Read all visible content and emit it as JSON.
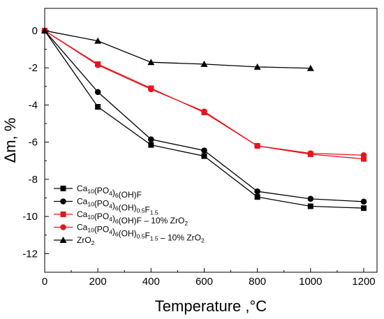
{
  "chart_data": {
    "type": "line",
    "xlabel": "Temperature ,°C",
    "ylabel": "Δm, %",
    "xlim": [
      0,
      1250
    ],
    "ylim": [
      -13,
      1.2
    ],
    "xticks": [
      0,
      200,
      400,
      600,
      800,
      1000,
      1200
    ],
    "yticks": [
      0,
      -2,
      -4,
      -6,
      -8,
      -10,
      -12
    ],
    "legend_position": "bottom-left",
    "grid": false,
    "series": [
      {
        "name": "Ca10(PO4)6(OH)F",
        "legend_label": {
          "base": "Ca",
          "parts": [
            [
              "sub",
              "10"
            ],
            [
              "",
              "(PO"
            ],
            [
              "sub",
              "4"
            ],
            [
              "",
              ")"
            ],
            [
              "sub",
              "6"
            ],
            [
              "",
              "(OH)F"
            ]
          ]
        },
        "color": "#000000",
        "marker": "square",
        "points": [
          [
            0,
            0
          ],
          [
            200,
            -4.1
          ],
          [
            400,
            -6.15
          ],
          [
            600,
            -6.75
          ],
          [
            800,
            -8.95
          ],
          [
            1000,
            -9.45
          ],
          [
            1200,
            -9.55
          ]
        ]
      },
      {
        "name": "Ca10(PO4)6(OH)0.5F1.5",
        "legend_label": {
          "base": "Ca",
          "parts": [
            [
              "sub",
              "10"
            ],
            [
              "",
              "(PO"
            ],
            [
              "sub",
              "4"
            ],
            [
              "",
              ")"
            ],
            [
              "sub",
              "6"
            ],
            [
              "",
              "(OH)"
            ],
            [
              "sub",
              "0.5"
            ],
            [
              "",
              "F"
            ],
            [
              "sub",
              "1.5"
            ]
          ]
        },
        "color": "#000000",
        "marker": "circle",
        "points": [
          [
            0,
            0
          ],
          [
            200,
            -3.3
          ],
          [
            400,
            -5.85
          ],
          [
            600,
            -6.45
          ],
          [
            800,
            -8.65
          ],
          [
            1000,
            -9.05
          ],
          [
            1200,
            -9.2
          ]
        ]
      },
      {
        "name": "Ca10(PO4)6(OH)F – 10% ZrO2",
        "legend_label": {
          "base": "Ca",
          "parts": [
            [
              "sub",
              "10"
            ],
            [
              "",
              "(PO"
            ],
            [
              "sub",
              "4"
            ],
            [
              "",
              ")"
            ],
            [
              "sub",
              "6"
            ],
            [
              "",
              "(OH)F – 10% ZrO"
            ],
            [
              "sub",
              "2"
            ]
          ]
        },
        "color": "#e8141c",
        "marker": "square",
        "points": [
          [
            0,
            0
          ],
          [
            200,
            -1.8
          ],
          [
            400,
            -3.1
          ],
          [
            600,
            -4.4
          ],
          [
            800,
            -6.2
          ],
          [
            1000,
            -6.65
          ],
          [
            1200,
            -6.9
          ]
        ]
      },
      {
        "name": "Ca10(PO4)6(OH)0.5F1.5 – 10% ZrO2",
        "legend_label": {
          "base": "Ca",
          "parts": [
            [
              "sub",
              "10"
            ],
            [
              "",
              "(PO"
            ],
            [
              "sub",
              "4"
            ],
            [
              "",
              ")"
            ],
            [
              "sub",
              "6"
            ],
            [
              "",
              "(OH)"
            ],
            [
              "sub",
              "0.5"
            ],
            [
              "",
              "F"
            ],
            [
              "sub",
              "1.5"
            ],
            [
              "",
              " – 10% ZrO"
            ],
            [
              "sub",
              "2"
            ]
          ]
        },
        "color": "#e8141c",
        "marker": "circle",
        "points": [
          [
            0,
            0
          ],
          [
            200,
            -1.85
          ],
          [
            400,
            -3.15
          ],
          [
            600,
            -4.35
          ],
          [
            800,
            -6.2
          ],
          [
            1000,
            -6.6
          ],
          [
            1200,
            -6.7
          ]
        ]
      },
      {
        "name": "ZrO2",
        "legend_label": {
          "base": "ZrO",
          "parts": [
            [
              "sub",
              "2"
            ]
          ]
        },
        "color": "#000000",
        "marker": "triangle",
        "points": [
          [
            0,
            0
          ],
          [
            200,
            -0.55
          ],
          [
            400,
            -1.7
          ],
          [
            600,
            -1.8
          ],
          [
            800,
            -1.95
          ],
          [
            1000,
            -2.02
          ]
        ]
      }
    ]
  }
}
